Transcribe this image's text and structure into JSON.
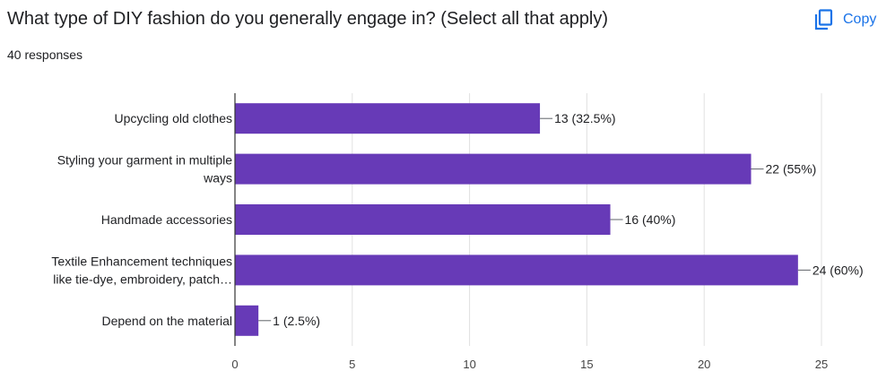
{
  "header": {
    "question": "What type of DIY fashion do you generally engage in?  (Select all that apply)",
    "responses": "40 responses",
    "copy_label": "Copy",
    "copy_icon": "copy-icon",
    "accent": "#1a73e8"
  },
  "chart_data": {
    "type": "bar",
    "orientation": "horizontal",
    "categories": [
      [
        "Upcycling old clothes"
      ],
      [
        "Styling your garment in multiple",
        "ways"
      ],
      [
        "Handmade accessories"
      ],
      [
        "Textile Enhancement techniques",
        "like tie-dye, embroidery, patch…"
      ],
      [
        "Depend on the material"
      ]
    ],
    "values": [
      13,
      22,
      16,
      24,
      1
    ],
    "data_labels": [
      "13 (32.5%)",
      "22 (55%)",
      "16 (40%)",
      "24 (60%)",
      "1 (2.5%)"
    ],
    "xlim": [
      0,
      25
    ],
    "xticks": [
      0,
      5,
      10,
      15,
      20,
      25
    ],
    "bar_color": "#673ab7",
    "grid": true
  }
}
